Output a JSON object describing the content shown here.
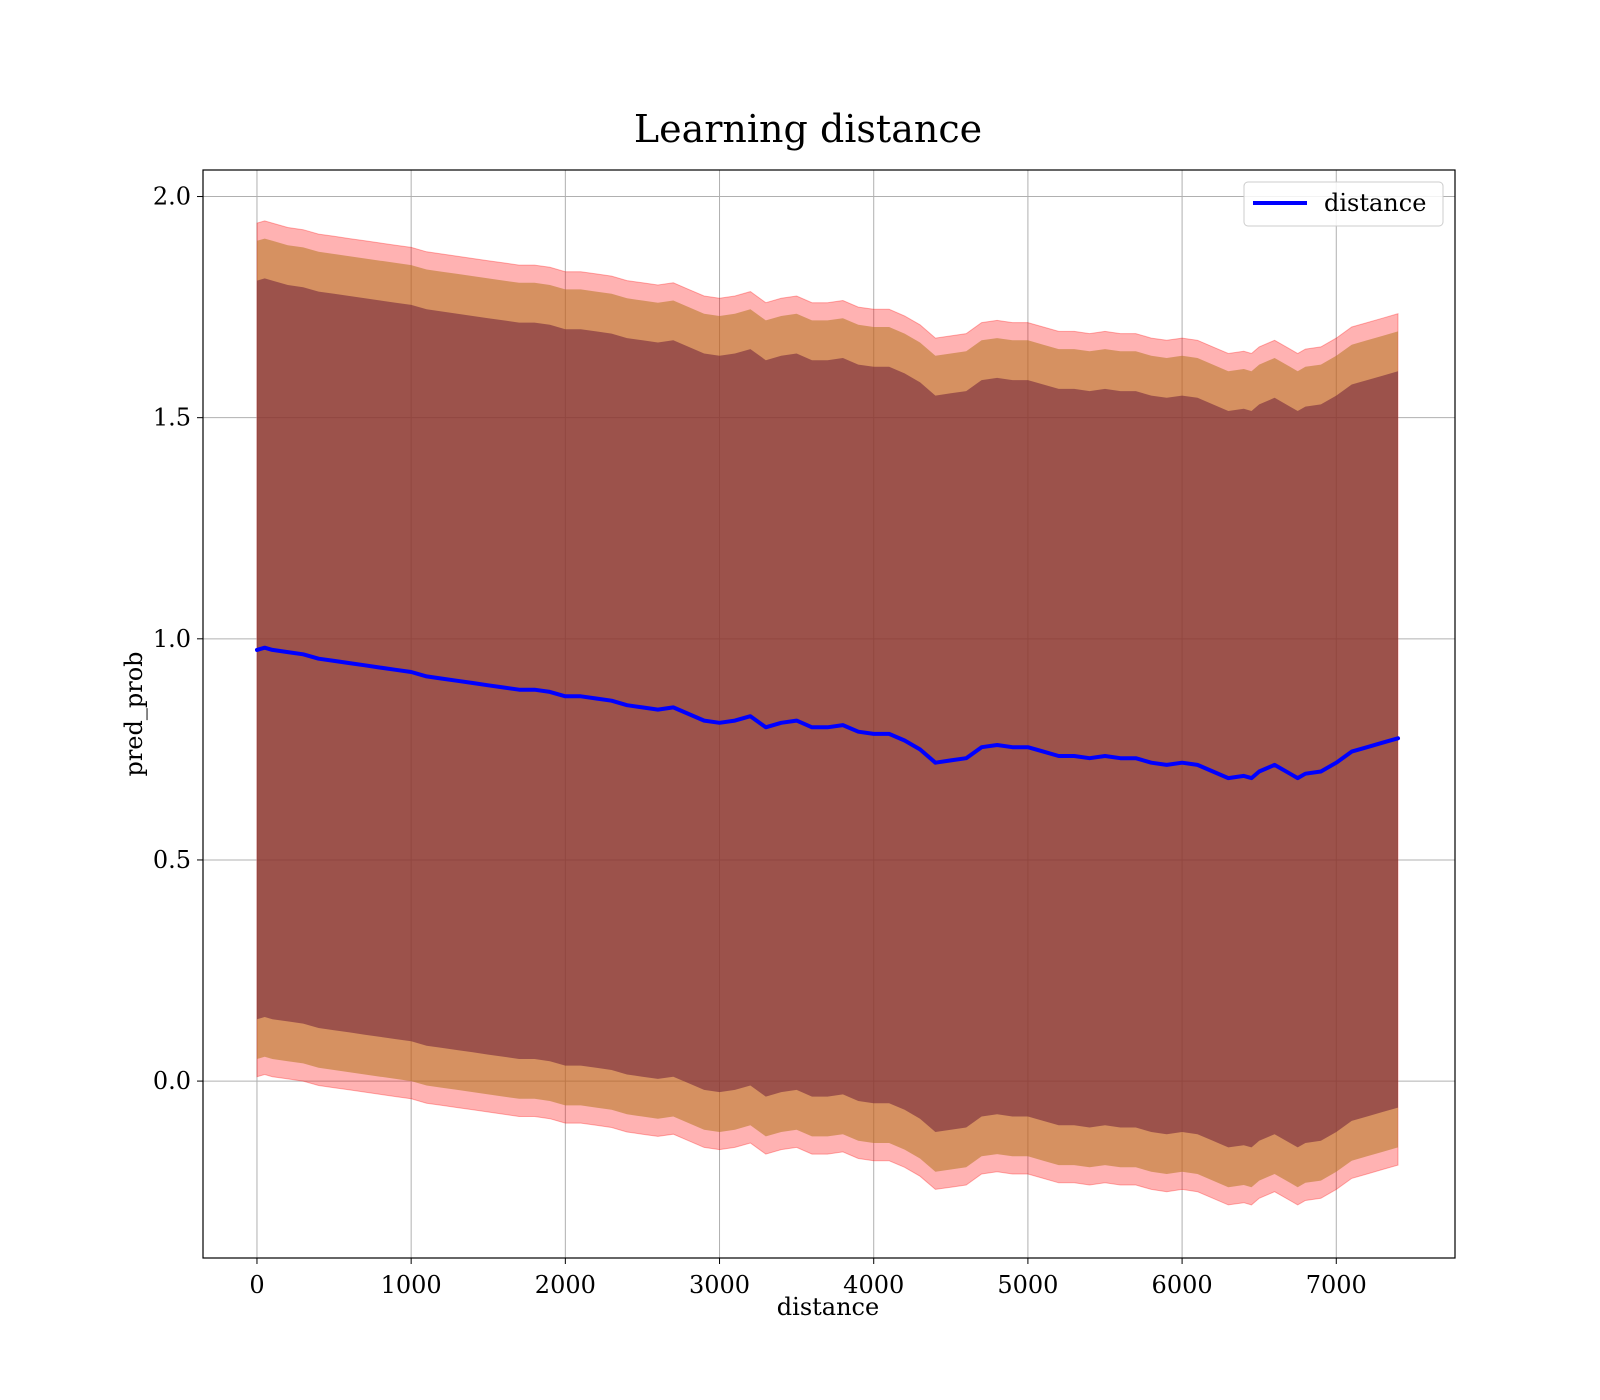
{
  "chart_data": {
    "type": "line",
    "title": "Learning distance",
    "xlabel": "distance",
    "ylabel": "pred_prob",
    "xlim": [
      -350,
      7770
    ],
    "ylim": [
      -0.4,
      2.06
    ],
    "xticks": [
      0,
      1000,
      2000,
      3000,
      4000,
      5000,
      6000,
      7000
    ],
    "xtick_labels": [
      "0",
      "1000",
      "2000",
      "3000",
      "4000",
      "5000",
      "6000",
      "7000"
    ],
    "yticks": [
      0.0,
      0.5,
      1.0,
      1.5,
      2.0
    ],
    "ytick_labels": [
      "0.0",
      "0.5",
      "1.0",
      "1.5",
      "2.0"
    ],
    "grid": true,
    "legend_position": "top-right",
    "colors": {
      "line": "#0000ff",
      "outer_band": "#ff0000",
      "middle_band": "#b5761f",
      "inner_band": "#6e1f3a",
      "grid": "#b0b0b0"
    },
    "series": [
      {
        "name": "distance",
        "x": [
          0,
          50,
          100,
          200,
          300,
          400,
          500,
          600,
          700,
          800,
          900,
          1000,
          1100,
          1200,
          1300,
          1400,
          1500,
          1600,
          1700,
          1800,
          1900,
          2000,
          2100,
          2200,
          2300,
          2400,
          2500,
          2600,
          2700,
          2800,
          2900,
          3000,
          3100,
          3200,
          3300,
          3400,
          3500,
          3600,
          3700,
          3800,
          3900,
          4000,
          4100,
          4200,
          4300,
          4400,
          4500,
          4600,
          4700,
          4800,
          4900,
          5000,
          5100,
          5200,
          5300,
          5400,
          5500,
          5600,
          5700,
          5800,
          5900,
          6000,
          6100,
          6200,
          6300,
          6400,
          6450,
          6500,
          6600,
          6700,
          6750,
          6800,
          6900,
          7000,
          7100,
          7200,
          7300,
          7400
        ],
        "y": [
          0.975,
          0.98,
          0.975,
          0.97,
          0.965,
          0.955,
          0.95,
          0.945,
          0.94,
          0.935,
          0.93,
          0.925,
          0.915,
          0.91,
          0.905,
          0.9,
          0.895,
          0.89,
          0.885,
          0.885,
          0.88,
          0.87,
          0.87,
          0.865,
          0.86,
          0.85,
          0.845,
          0.84,
          0.845,
          0.83,
          0.815,
          0.81,
          0.815,
          0.825,
          0.8,
          0.81,
          0.815,
          0.8,
          0.8,
          0.805,
          0.79,
          0.785,
          0.785,
          0.77,
          0.75,
          0.72,
          0.725,
          0.73,
          0.755,
          0.76,
          0.755,
          0.755,
          0.745,
          0.735,
          0.735,
          0.73,
          0.735,
          0.73,
          0.73,
          0.72,
          0.715,
          0.72,
          0.715,
          0.7,
          0.685,
          0.69,
          0.685,
          0.7,
          0.715,
          0.695,
          0.685,
          0.695,
          0.7,
          0.72,
          0.745,
          0.755,
          0.765,
          0.775
        ],
        "outer_band": {
          "upper": [
            1.94,
            1.945,
            1.94,
            1.93,
            1.925,
            1.915,
            1.91,
            1.905,
            1.9,
            1.895,
            1.89,
            1.885,
            1.875,
            1.87,
            1.865,
            1.86,
            1.855,
            1.85,
            1.845,
            1.845,
            1.84,
            1.83,
            1.83,
            1.825,
            1.82,
            1.81,
            1.805,
            1.8,
            1.805,
            1.79,
            1.775,
            1.77,
            1.775,
            1.785,
            1.76,
            1.77,
            1.775,
            1.76,
            1.76,
            1.765,
            1.75,
            1.745,
            1.745,
            1.73,
            1.71,
            1.68,
            1.685,
            1.69,
            1.715,
            1.72,
            1.715,
            1.715,
            1.705,
            1.695,
            1.695,
            1.69,
            1.695,
            1.69,
            1.69,
            1.68,
            1.675,
            1.68,
            1.675,
            1.66,
            1.645,
            1.65,
            1.645,
            1.66,
            1.675,
            1.655,
            1.645,
            1.655,
            1.66,
            1.68,
            1.705,
            1.715,
            1.725,
            1.735
          ],
          "lower": [
            0.01,
            0.015,
            0.01,
            0.005,
            0.0,
            -0.01,
            -0.015,
            -0.02,
            -0.025,
            -0.03,
            -0.035,
            -0.04,
            -0.05,
            -0.055,
            -0.06,
            -0.065,
            -0.07,
            -0.075,
            -0.08,
            -0.08,
            -0.085,
            -0.095,
            -0.095,
            -0.1,
            -0.105,
            -0.115,
            -0.12,
            -0.125,
            -0.12,
            -0.135,
            -0.15,
            -0.155,
            -0.15,
            -0.14,
            -0.165,
            -0.155,
            -0.15,
            -0.165,
            -0.165,
            -0.16,
            -0.175,
            -0.18,
            -0.18,
            -0.195,
            -0.215,
            -0.245,
            -0.24,
            -0.235,
            -0.21,
            -0.205,
            -0.21,
            -0.21,
            -0.22,
            -0.23,
            -0.23,
            -0.235,
            -0.23,
            -0.235,
            -0.235,
            -0.245,
            -0.25,
            -0.245,
            -0.25,
            -0.265,
            -0.28,
            -0.275,
            -0.28,
            -0.265,
            -0.25,
            -0.27,
            -0.28,
            -0.27,
            -0.265,
            -0.245,
            -0.22,
            -0.21,
            -0.2,
            -0.19
          ]
        },
        "middle_band": {
          "upper": [
            1.9,
            1.905,
            1.9,
            1.89,
            1.885,
            1.875,
            1.87,
            1.865,
            1.86,
            1.855,
            1.85,
            1.845,
            1.835,
            1.83,
            1.825,
            1.82,
            1.815,
            1.81,
            1.805,
            1.805,
            1.8,
            1.79,
            1.79,
            1.785,
            1.78,
            1.77,
            1.765,
            1.76,
            1.765,
            1.75,
            1.735,
            1.73,
            1.735,
            1.745,
            1.72,
            1.73,
            1.735,
            1.72,
            1.72,
            1.725,
            1.71,
            1.705,
            1.705,
            1.69,
            1.67,
            1.64,
            1.645,
            1.65,
            1.675,
            1.68,
            1.675,
            1.675,
            1.665,
            1.655,
            1.655,
            1.65,
            1.655,
            1.65,
            1.65,
            1.64,
            1.635,
            1.64,
            1.635,
            1.62,
            1.605,
            1.61,
            1.605,
            1.62,
            1.635,
            1.615,
            1.605,
            1.615,
            1.62,
            1.64,
            1.665,
            1.675,
            1.685,
            1.695
          ],
          "lower": [
            0.05,
            0.055,
            0.05,
            0.045,
            0.04,
            0.03,
            0.025,
            0.02,
            0.015,
            0.01,
            0.005,
            0.0,
            -0.01,
            -0.015,
            -0.02,
            -0.025,
            -0.03,
            -0.035,
            -0.04,
            -0.04,
            -0.045,
            -0.055,
            -0.055,
            -0.06,
            -0.065,
            -0.075,
            -0.08,
            -0.085,
            -0.08,
            -0.095,
            -0.11,
            -0.115,
            -0.11,
            -0.1,
            -0.125,
            -0.115,
            -0.11,
            -0.125,
            -0.125,
            -0.12,
            -0.135,
            -0.14,
            -0.14,
            -0.155,
            -0.175,
            -0.205,
            -0.2,
            -0.195,
            -0.17,
            -0.165,
            -0.17,
            -0.17,
            -0.18,
            -0.19,
            -0.19,
            -0.195,
            -0.19,
            -0.195,
            -0.195,
            -0.205,
            -0.21,
            -0.205,
            -0.21,
            -0.225,
            -0.24,
            -0.235,
            -0.24,
            -0.225,
            -0.21,
            -0.23,
            -0.24,
            -0.23,
            -0.225,
            -0.205,
            -0.18,
            -0.17,
            -0.16,
            -0.15
          ]
        },
        "inner_band": {
          "upper": [
            1.81,
            1.815,
            1.81,
            1.8,
            1.795,
            1.785,
            1.78,
            1.775,
            1.77,
            1.765,
            1.76,
            1.755,
            1.745,
            1.74,
            1.735,
            1.73,
            1.725,
            1.72,
            1.715,
            1.715,
            1.71,
            1.7,
            1.7,
            1.695,
            1.69,
            1.68,
            1.675,
            1.67,
            1.675,
            1.66,
            1.645,
            1.64,
            1.645,
            1.655,
            1.63,
            1.64,
            1.645,
            1.63,
            1.63,
            1.635,
            1.62,
            1.615,
            1.615,
            1.6,
            1.58,
            1.55,
            1.555,
            1.56,
            1.585,
            1.59,
            1.585,
            1.585,
            1.575,
            1.565,
            1.565,
            1.56,
            1.565,
            1.56,
            1.56,
            1.55,
            1.545,
            1.55,
            1.545,
            1.53,
            1.515,
            1.52,
            1.515,
            1.53,
            1.545,
            1.525,
            1.515,
            1.525,
            1.53,
            1.55,
            1.575,
            1.585,
            1.595,
            1.605
          ],
          "lower": [
            0.14,
            0.145,
            0.14,
            0.135,
            0.13,
            0.12,
            0.115,
            0.11,
            0.105,
            0.1,
            0.095,
            0.09,
            0.08,
            0.075,
            0.07,
            0.065,
            0.06,
            0.055,
            0.05,
            0.05,
            0.045,
            0.035,
            0.035,
            0.03,
            0.025,
            0.015,
            0.01,
            0.005,
            0.01,
            -0.005,
            -0.02,
            -0.025,
            -0.02,
            -0.01,
            -0.035,
            -0.025,
            -0.02,
            -0.035,
            -0.035,
            -0.03,
            -0.045,
            -0.05,
            -0.05,
            -0.065,
            -0.085,
            -0.115,
            -0.11,
            -0.105,
            -0.08,
            -0.075,
            -0.08,
            -0.08,
            -0.09,
            -0.1,
            -0.1,
            -0.105,
            -0.1,
            -0.105,
            -0.105,
            -0.115,
            -0.12,
            -0.115,
            -0.12,
            -0.135,
            -0.15,
            -0.145,
            -0.15,
            -0.135,
            -0.12,
            -0.14,
            -0.15,
            -0.14,
            -0.135,
            -0.115,
            -0.09,
            -0.08,
            -0.07,
            -0.06
          ]
        }
      }
    ]
  }
}
